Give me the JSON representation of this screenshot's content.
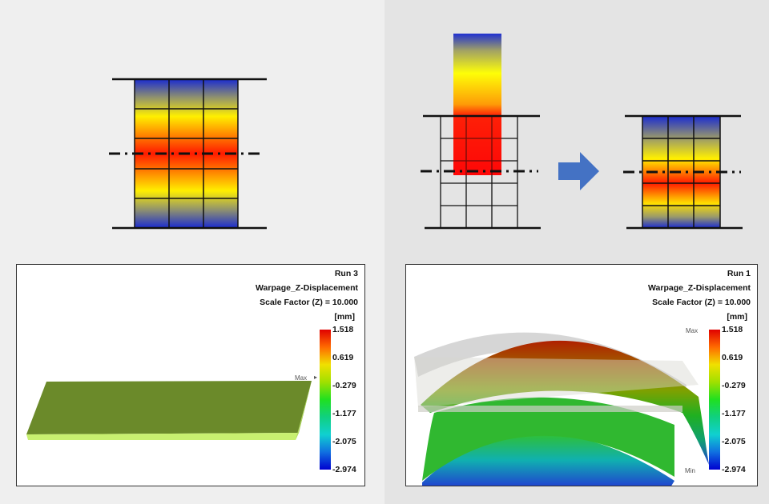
{
  "panels": [
    {
      "run": "Run 3",
      "result": "Warpage_Z-Displacement",
      "scale": "Scale Factor (Z) = 10.000",
      "unit": "[mm]",
      "legend": [
        "1.518",
        "0.619",
        "-0.279",
        "-1.177",
        "-2.075",
        "-2.974"
      ],
      "max_marker": "Max",
      "min_marker": ""
    },
    {
      "run": "Run 1",
      "result": "Warpage_Z-Displacement",
      "scale": "Scale Factor (Z) = 10.000",
      "unit": "[mm]",
      "legend": [
        "1.518",
        "0.619",
        "-0.279",
        "-1.177",
        "-2.075",
        "-2.974"
      ],
      "max_marker": "Max",
      "min_marker": "Min"
    }
  ],
  "colors": {
    "hot": "#ff0000",
    "warm": "#ffff00",
    "cold": "#0000cc",
    "arrow": "#4472c4",
    "plate": "#6b8a2a"
  }
}
